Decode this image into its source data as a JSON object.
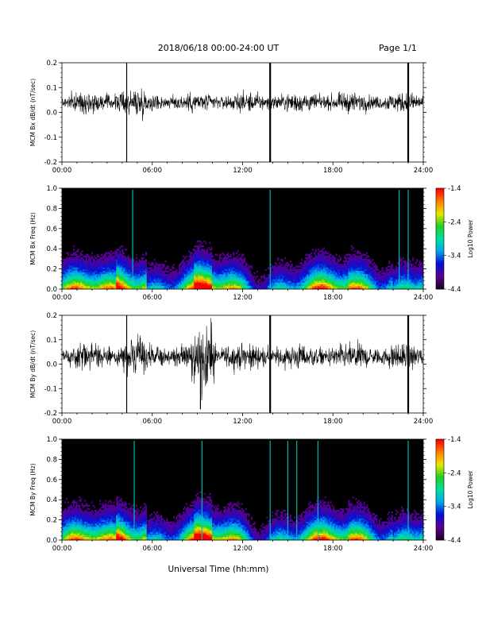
{
  "header": {
    "title": "2018/06/18  00:00-24:00 UT",
    "page": "Page 1/1"
  },
  "x_axis": {
    "tick_labels": [
      "00:00",
      "06:00",
      "12:00",
      "18:00",
      "24:00"
    ],
    "label": "Universal Time (hh:mm)"
  },
  "colors": {
    "trace": "#000000",
    "spectrogram_background": "#000000",
    "colormap": [
      "#200028",
      "#5a0094",
      "#0010d8",
      "#00a8f0",
      "#00e0a0",
      "#20d020",
      "#e8e800",
      "#ff8000",
      "#ff0000"
    ]
  },
  "chart_data": [
    {
      "type": "line",
      "panel": "bx_timeseries",
      "ylabel": "MCM Bx dB/dt (nT/sec)",
      "ylim": [
        -0.2,
        0.2
      ],
      "ytick_labels": [
        "0.2",
        "0.1",
        "0.0",
        "-0.1",
        "-0.2"
      ],
      "x_range_hours": [
        0,
        24
      ],
      "baseline": 0.04,
      "description_values": {
        "noise_amplitude": 0.03,
        "spikes_hours": [
          4.3,
          13.83,
          23.0
        ],
        "spike_widths": [
          1,
          2,
          2
        ]
      }
    },
    {
      "type": "heatmap",
      "panel": "bx_spectrogram",
      "ylabel": "MCM Bx Freq (Hz)",
      "ylim": [
        0.0,
        1.0
      ],
      "ytick_labels": [
        "1.0",
        "0.8",
        "0.6",
        "0.4",
        "0.2",
        "0.0"
      ],
      "x_range_hours": [
        0,
        24
      ],
      "colorbar": {
        "label": "Log10 Power",
        "range": [
          -4.4,
          -1.4
        ],
        "tick_labels": [
          "-1.4",
          "-2.4",
          "-3.4",
          "-4.4"
        ]
      },
      "vertical_lines_hours": [
        4.7,
        13.83,
        22.4,
        23.0
      ]
    },
    {
      "type": "line",
      "panel": "by_timeseries",
      "ylabel": "MCM By dB/dt (nT/sec)",
      "ylim": [
        -0.2,
        0.2
      ],
      "ytick_labels": [
        "0.2",
        "0.1",
        "0.0",
        "-0.1",
        "-0.2"
      ],
      "x_range_hours": [
        0,
        24
      ],
      "baseline": 0.03,
      "description_values": {
        "noise_amplitude": 0.04,
        "spikes_hours": [
          4.3,
          13.83,
          23.0
        ],
        "spike_widths": [
          1,
          2,
          2
        ],
        "disturbance_hour": 9.2
      }
    },
    {
      "type": "heatmap",
      "panel": "by_spectrogram",
      "ylabel": "MCM By Freq (Hz)",
      "ylim": [
        0.0,
        1.0
      ],
      "ytick_labels": [
        "1.0",
        "0.8",
        "0.6",
        "0.4",
        "0.2",
        "0.0"
      ],
      "x_range_hours": [
        0,
        24
      ],
      "colorbar": {
        "label": "Log10 Power",
        "range": [
          -4.4,
          -1.4
        ],
        "tick_labels": [
          "-1.4",
          "-2.4",
          "-3.4",
          "-4.4"
        ]
      },
      "vertical_lines_hours": [
        4.8,
        9.3,
        13.83,
        15.0,
        15.6,
        17.0,
        23.0
      ]
    }
  ]
}
